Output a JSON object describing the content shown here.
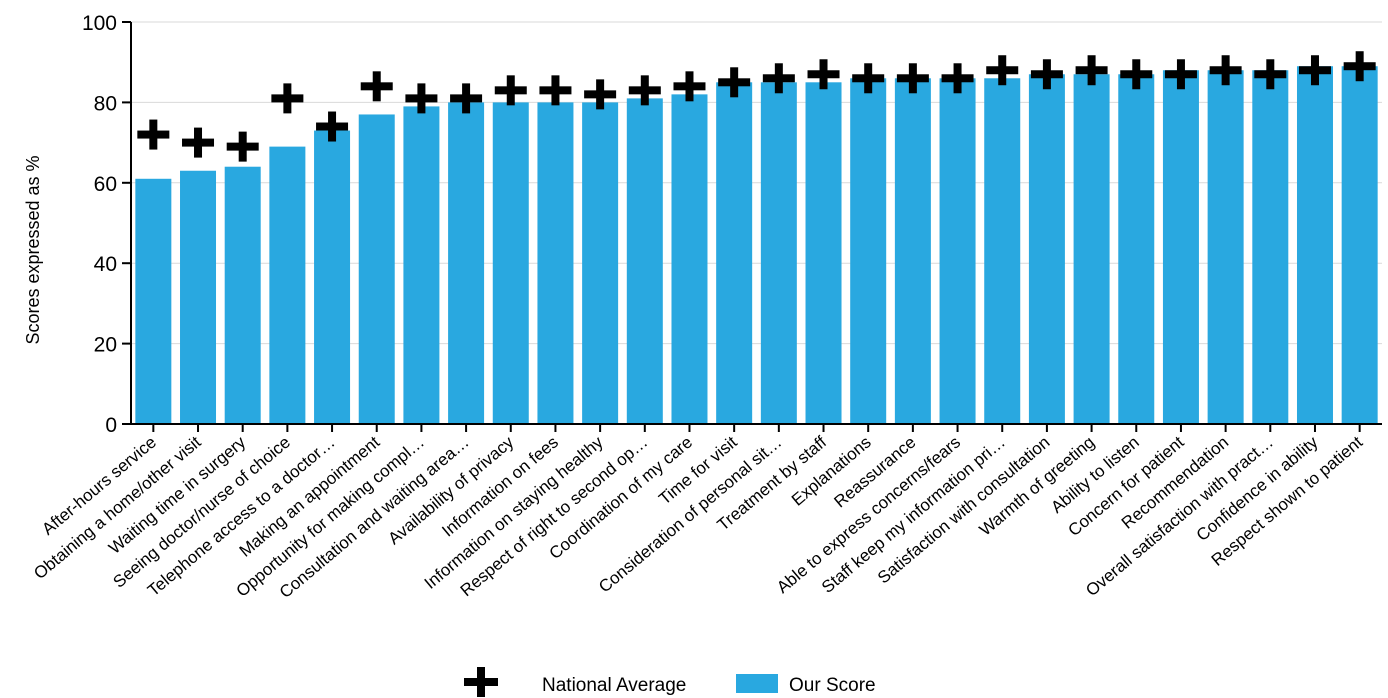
{
  "chart_data": {
    "type": "bar",
    "ylabel": "Scores expressed as %",
    "xlabel": "",
    "ylim": [
      0,
      100
    ],
    "yticks": [
      0,
      20,
      40,
      60,
      80,
      100
    ],
    "grid": true,
    "legend_position": "bottom",
    "categories": [
      "After-hours service",
      "Obtaining a home/other visit",
      "Waiting time in surgery",
      "Seeing doctor/nurse of choice",
      "Telephone access to a doctor…",
      "Making an appointment",
      "Opportunity for making compl…",
      "Consultation and waiting area…",
      "Availability of privacy",
      "Information on fees",
      "Information on staying healthy",
      "Respect of right to second op…",
      "Coordination of my care",
      "Time for visit",
      "Consideration of personal sit…",
      "Treatment by staff",
      "Explanations",
      "Reassurance",
      "Able to express concerns/fears",
      "Staff keep my information pri…",
      "Satisfaction with consultation",
      "Warmth of greeting",
      "Ability to listen",
      "Concern for patient",
      "Recommendation",
      "Overall satisfaction with pract…",
      "Confidence in ability",
      "Respect shown to patient"
    ],
    "series": [
      {
        "name": "Our Score",
        "color": "#29a8e0",
        "values": [
          61,
          63,
          64,
          69,
          73,
          77,
          79,
          80,
          80,
          80,
          80,
          81,
          82,
          85,
          85,
          85,
          86,
          86,
          86,
          86,
          87,
          87,
          87,
          88,
          88,
          88,
          89,
          89
        ]
      },
      {
        "name": "National Average",
        "color": "#000000",
        "marker": "plus",
        "values": [
          72,
          70,
          69,
          81,
          74,
          84,
          81,
          81,
          83,
          83,
          82,
          83,
          84,
          85,
          86,
          87,
          86,
          86,
          86,
          88,
          87,
          88,
          87,
          87,
          88,
          87,
          88,
          89
        ]
      }
    ]
  }
}
